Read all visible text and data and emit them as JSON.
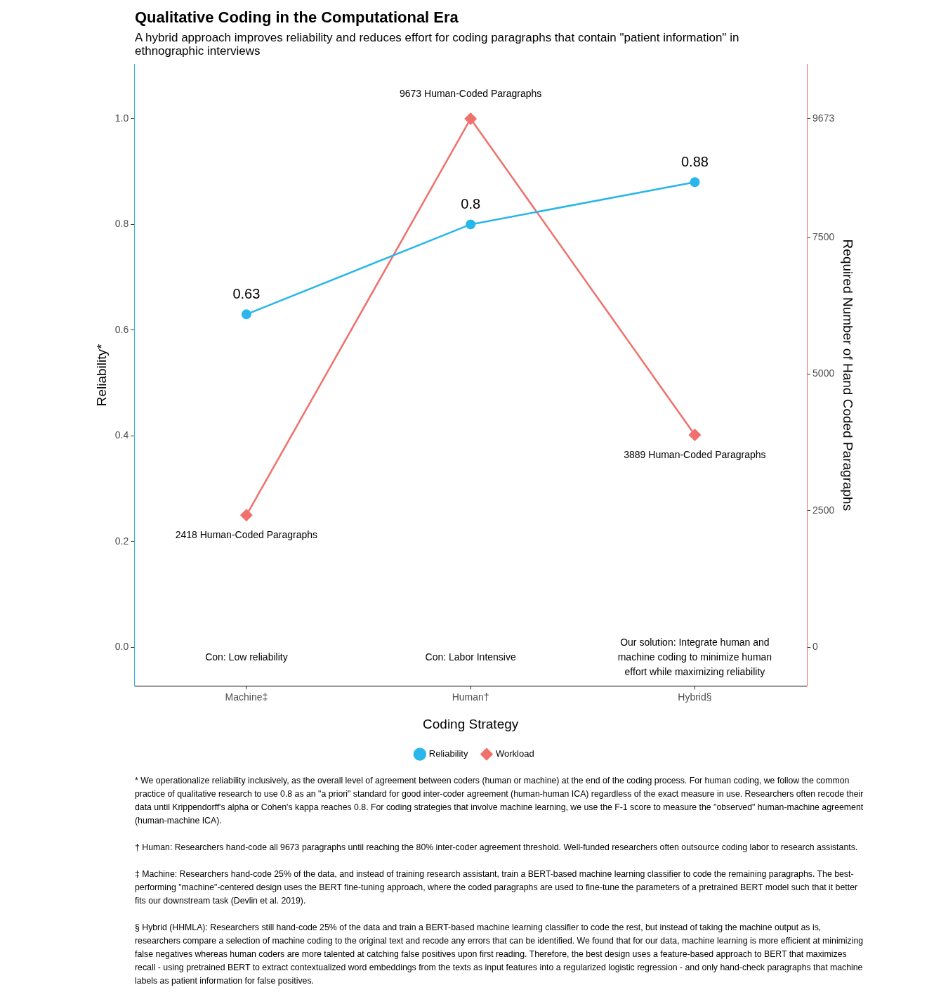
{
  "chart_data": {
    "type": "line",
    "title": "Qualitative Coding in the Computational Era",
    "subtitle": "A hybrid approach improves reliability and reduces effort for coding paragraphs that contain \"patient information\" in ethnographic interviews",
    "xlabel": "Coding Strategy",
    "ylabel": "Reliability*",
    "y2label": "Required Number of Hand Coded Paragraphs",
    "categories": [
      "Machine‡",
      "Human†",
      "Hybrid§"
    ],
    "series": [
      {
        "name": "Reliability",
        "color": "#29b6ea",
        "values": [
          0.63,
          0.8,
          0.88
        ],
        "value_labels": [
          "0.63",
          "0.8",
          "0.88"
        ],
        "marker": "circle"
      },
      {
        "name": "Workload",
        "color": "#f0706c",
        "values": [
          2418,
          9673,
          3889
        ],
        "value_labels": [
          "2418 Human-Coded Paragraphs",
          "9673 Human-Coded Paragraphs",
          "3889 Human-Coded Paragraphs"
        ],
        "axis": "y2",
        "marker": "diamond"
      }
    ],
    "ylim": [
      -0.073,
      1.103
    ],
    "yticks": [
      {
        "value": 0,
        "label": "0.0"
      },
      0.2,
      0.4,
      0.6,
      0.8,
      {
        "value": 1,
        "label": "1.0"
      }
    ],
    "y2lim": [
      -706,
      10670
    ],
    "y2ticks": [
      0,
      2500,
      5000,
      7500,
      9673
    ],
    "grid": false,
    "legend": "bottom",
    "annotations": [
      "Con: Low reliability",
      "Con: Labor Intensive",
      "Our solution: Integrate human and machine coding to minimize human effort while maximizing reliability",
      "* We operationalize reliability inclusively, as the overall level of agreement between coders (human or machine) at the end of the coding process. For human coding, we follow the common practice of qualitative research to use 0.8 as an \"a priori\" standard for good inter-coder agreement (human-human ICA) regardless of the exact measure in use. Researchers often recode their data until Krippendorff's alpha or Cohen's kappa reaches 0.8. For coding strategies that involve machine learning, we use the F-1 score to measure the \"observed\" human-machine agreement (human-machine ICA).",
      "† Human: Researchers hand-code all 9673 paragraphs until reaching the 80% inter-coder agreement threshold. Well-funded researchers often outsource coding labor to research assistants.",
      "‡ Machine: Researchers hand-code 25% of the data, and instead of training research assistant, train a BERT-based machine learning classifier to code the remaining paragraphs. The best-performing \"machine\"-centered design uses the BERT fine-tuning approach, where the coded paragraphs are used to fine-tune the parameters of a pretrained BERT model such that it better fits our downstream task (Devlin et al. 2019).",
      "§ Hybrid (HHMLA): Researchers still hand-code 25% of the data and train a BERT-based machine learning classifier to code the rest, but instead of taking the machine output as is, researchers compare a selection of machine coding to the original text and recode any errors that can be identified. We found that for our data, machine learning is more efficient at minimizing false negatives whereas human coders are more talented at catching false positives upon first reading. Therefore, the best design uses a feature-based approach to BERT that maximizes recall - using pretrained BERT to extract contextualized word embeddings from the texts as input features into a regularized logistic regression - and only hand-check paragraphs that machine labels as patient information for false positives."
    ]
  }
}
